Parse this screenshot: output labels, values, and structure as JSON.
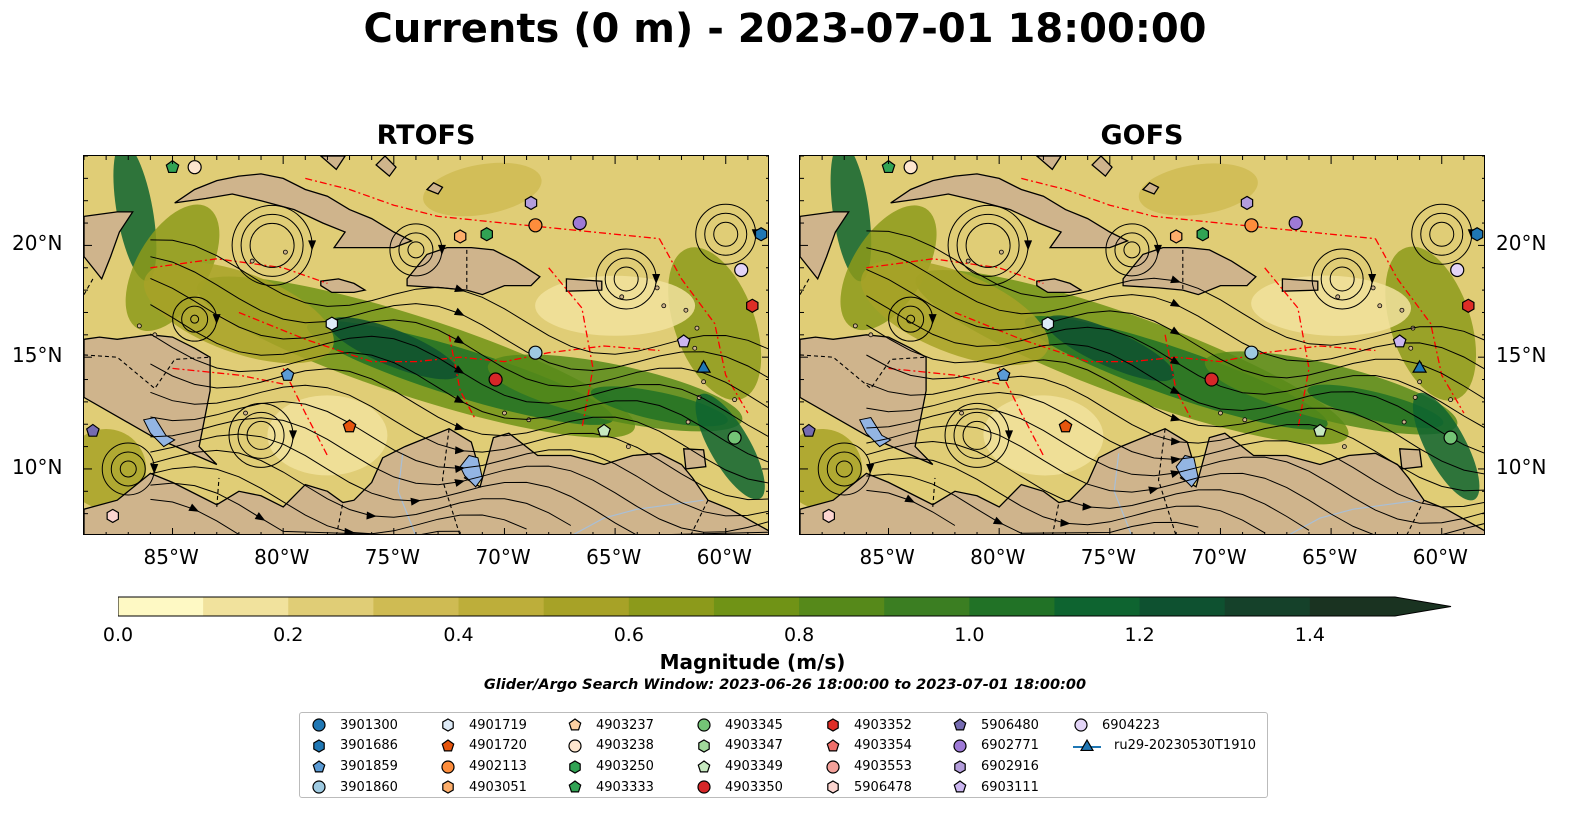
{
  "title": "Currents (0 m) - 2023-07-01 18:00:00",
  "panels": [
    {
      "title": "RTOFS"
    },
    {
      "title": "GOFS"
    }
  ],
  "axes": {
    "lon_ticks": [
      "85°W",
      "80°W",
      "75°W",
      "70°W",
      "65°W",
      "60°W"
    ],
    "lat_ticks": [
      "20°N",
      "15°N",
      "10°N"
    ],
    "lon_range": [
      -89,
      -58
    ],
    "lat_range": [
      7,
      24
    ]
  },
  "colorbar": {
    "label": "Magnitude (m/s)",
    "ticks": [
      "0.0",
      "0.2",
      "0.4",
      "0.6",
      "0.8",
      "1.0",
      "1.2",
      "1.4"
    ],
    "min": 0.0,
    "max": 1.5,
    "extend": "max",
    "colors": [
      "#fef9c4",
      "#f1e29d",
      "#e0cd76",
      "#cfbb53",
      "#bdae3a",
      "#a7a227",
      "#8c9a1b",
      "#709316",
      "#56891a",
      "#3b7e22",
      "#217226",
      "#0e6430",
      "#0e5130",
      "#15412a",
      "#1a3321"
    ]
  },
  "search_window": "Glider/Argo Search Window: 2023-06-26 18:00:00 to 2023-07-01 18:00:00",
  "legend": [
    {
      "label": "3901300",
      "shape": "circle",
      "color": "#1f77b4"
    },
    {
      "label": "3901686",
      "shape": "hexagon",
      "color": "#1f77b4"
    },
    {
      "label": "3901859",
      "shape": "pentagon",
      "color": "#5b9bd5"
    },
    {
      "label": "3901860",
      "shape": "circle",
      "color": "#9ecae1"
    },
    {
      "label": "4901719",
      "shape": "hexagon",
      "color": "#deebf7"
    },
    {
      "label": "4901720",
      "shape": "pentagon",
      "color": "#e6550d"
    },
    {
      "label": "4902113",
      "shape": "circle",
      "color": "#fd8d3c"
    },
    {
      "label": "4903051",
      "shape": "hexagon",
      "color": "#fdae6b"
    },
    {
      "label": "4903237",
      "shape": "pentagon",
      "color": "#fdd0a2"
    },
    {
      "label": "4903238",
      "shape": "circle",
      "color": "#fee6ce"
    },
    {
      "label": "4903250",
      "shape": "hexagon",
      "color": "#31a354"
    },
    {
      "label": "4903333",
      "shape": "pentagon",
      "color": "#31a354"
    },
    {
      "label": "4903345",
      "shape": "circle",
      "color": "#74c476"
    },
    {
      "label": "4903347",
      "shape": "hexagon",
      "color": "#a1d99b"
    },
    {
      "label": "4903349",
      "shape": "pentagon",
      "color": "#c7e9c0"
    },
    {
      "label": "4903350",
      "shape": "circle",
      "color": "#d62728"
    },
    {
      "label": "4903352",
      "shape": "hexagon",
      "color": "#de2d26"
    },
    {
      "label": "4903354",
      "shape": "pentagon",
      "color": "#ef6f6a"
    },
    {
      "label": "4903553",
      "shape": "circle",
      "color": "#f4a19a"
    },
    {
      "label": "5906478",
      "shape": "hexagon",
      "color": "#fcd5d0"
    },
    {
      "label": "5906480",
      "shape": "pentagon",
      "color": "#756bb1"
    },
    {
      "label": "6902771",
      "shape": "circle",
      "color": "#9e7ad6"
    },
    {
      "label": "6902916",
      "shape": "hexagon",
      "color": "#b39ddb"
    },
    {
      "label": "6903111",
      "shape": "pentagon",
      "color": "#cbb6f0"
    },
    {
      "label": "6904223",
      "shape": "circle",
      "color": "#e3d4f7"
    },
    {
      "label": "ru29-20230530T1910",
      "shape": "triangle-line",
      "color": "#1f77b4"
    }
  ],
  "markers": [
    {
      "id": "4903333",
      "lon": -85.0,
      "lat": 23.5
    },
    {
      "id": "4903238",
      "lon": -84.0,
      "lat": 23.5
    },
    {
      "id": "6902916",
      "lon": -68.8,
      "lat": 21.9
    },
    {
      "id": "4902113",
      "lon": -68.6,
      "lat": 20.9
    },
    {
      "id": "6902771",
      "lon": -66.6,
      "lat": 21.0
    },
    {
      "id": "4903250",
      "lon": -70.8,
      "lat": 20.5
    },
    {
      "id": "4903051",
      "lon": -72.0,
      "lat": 20.4
    },
    {
      "id": "3901686",
      "lon": -58.4,
      "lat": 20.5
    },
    {
      "id": "6904223",
      "lon": -59.3,
      "lat": 18.9
    },
    {
      "id": "4903352",
      "lon": -58.8,
      "lat": 17.3
    },
    {
      "id": "4901719",
      "lon": -77.8,
      "lat": 16.5
    },
    {
      "id": "6903111",
      "lon": -61.9,
      "lat": 15.7
    },
    {
      "id": "3901860",
      "lon": -68.6,
      "lat": 15.2
    },
    {
      "id": "ru29-20230530T1910",
      "lon": -61.0,
      "lat": 14.5
    },
    {
      "id": "3901859",
      "lon": -79.8,
      "lat": 14.2
    },
    {
      "id": "4903350",
      "lon": -70.4,
      "lat": 14.0
    },
    {
      "id": "4901720",
      "lon": -77.0,
      "lat": 11.9
    },
    {
      "id": "5906480",
      "lon": -88.6,
      "lat": 11.7
    },
    {
      "id": "4903349",
      "lon": -65.5,
      "lat": 11.7
    },
    {
      "id": "4903345",
      "lon": -59.6,
      "lat": 11.4
    },
    {
      "id": "5906478",
      "lon": -87.7,
      "lat": 7.9
    }
  ]
}
